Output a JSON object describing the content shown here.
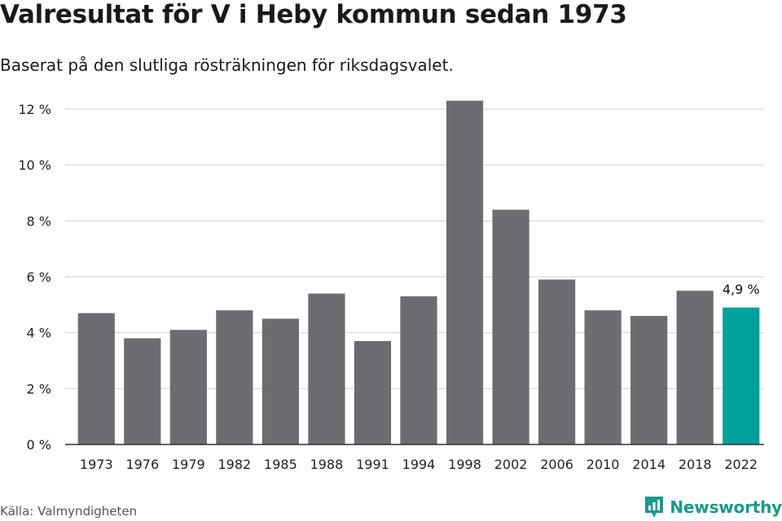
{
  "header": {
    "title": "Valresultat för V i Heby kommun sedan 1973",
    "subtitle": "Baserat på den slutliga rösträkningen för riksdagsvalet."
  },
  "footer": {
    "source": "Källa: Valmyndigheten",
    "brand": "Newsworthy"
  },
  "colors": {
    "bar": "#6d6c71",
    "highlight": "#00a19a",
    "grid": "#dddddd",
    "axis": "#333333",
    "brand": "#1a9a8a"
  },
  "chart_data": {
    "type": "bar",
    "title": "Valresultat för V i Heby kommun sedan 1973",
    "categories": [
      "1973",
      "1976",
      "1979",
      "1982",
      "1985",
      "1988",
      "1991",
      "1994",
      "1998",
      "2002",
      "2006",
      "2010",
      "2014",
      "2018",
      "2022"
    ],
    "values": [
      4.7,
      3.8,
      4.1,
      4.8,
      4.5,
      5.4,
      3.7,
      5.3,
      12.3,
      8.4,
      5.9,
      4.8,
      4.6,
      5.5,
      4.9
    ],
    "ylim": [
      0,
      12
    ],
    "yticks": [
      0,
      2,
      4,
      6,
      8,
      10,
      12
    ],
    "ytick_labels": [
      "0 %",
      "2 %",
      "4 %",
      "6 %",
      "8 %",
      "10 %",
      "12 %"
    ],
    "highlight_category": "2022",
    "annotation": "4,9 %",
    "xlabel": "",
    "ylabel": "",
    "grid": true
  }
}
